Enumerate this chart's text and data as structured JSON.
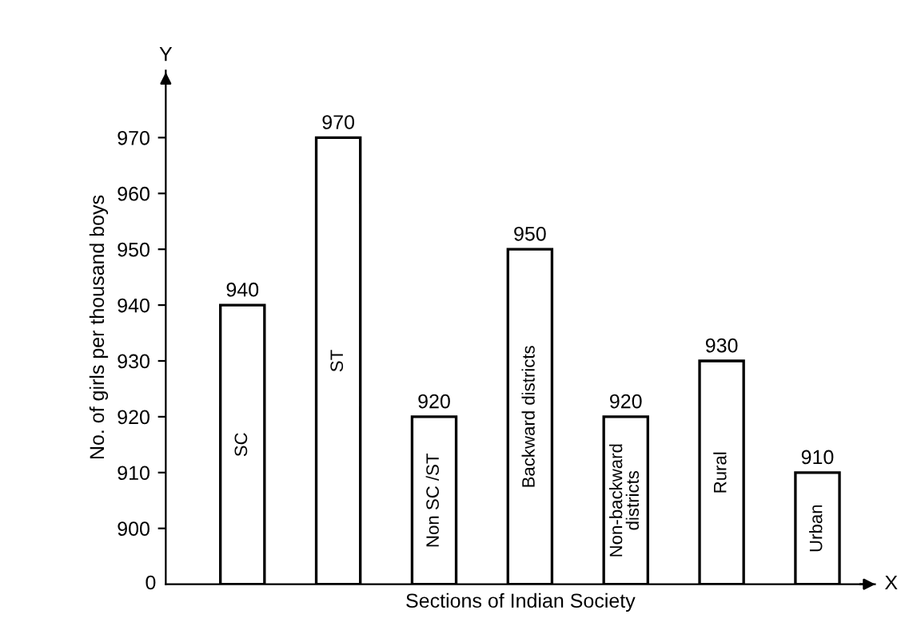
{
  "chart_data": {
    "type": "bar",
    "xlabel": "Sections of Indian Society",
    "ylabel": "No. of girls per thousand boys",
    "categories": [
      "SC",
      "ST",
      "Non SC /ST",
      "Backward districts",
      "Non-backward districts",
      "Rural",
      "Urban"
    ],
    "values": [
      940,
      970,
      920,
      950,
      920,
      930,
      910
    ],
    "color": "#ffffff",
    "data_labels": true,
    "ylim": [
      890,
      982
    ],
    "yticks": [
      900,
      910,
      920,
      930,
      940,
      950,
      960,
      970
    ],
    "grid": false,
    "annotations": [
      "Y",
      "X",
      "0"
    ]
  }
}
